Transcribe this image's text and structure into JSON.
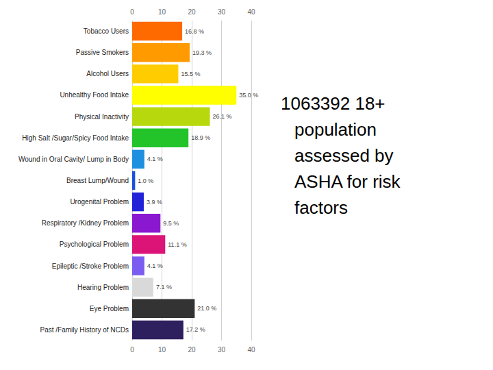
{
  "chart_data": {
    "type": "bar",
    "orientation": "horizontal",
    "annotation": "1063392 18+ population assessed by ASHA for risk factors",
    "categories": [
      "Tobacco Users",
      "Passive Smokers",
      "Alcohol Users",
      "Unhealthy Food Intake",
      "Physical Inactivity",
      "High Salt /Sugar/Spicy Food Intake",
      "Wound in Oral Cavity/ Lump in Body",
      "Breast Lump/Wound",
      "Urogenital Problem",
      "Respiratory /Kidney Problem",
      "Psychological Problem",
      "Epileptic /Stroke Problem",
      "Hearing Problem",
      "Eye Problem",
      "Past /Family History of NCDs"
    ],
    "values": [
      16.8,
      19.3,
      15.5,
      35.0,
      26.1,
      18.9,
      4.1,
      1.0,
      3.9,
      9.5,
      11.1,
      4.1,
      7.1,
      21.0,
      17.2
    ],
    "value_labels": [
      "16.8 %",
      "19.3 %",
      "15.5 %",
      "35.0 %",
      "26.1 %",
      "18.9 %",
      "4.1 %",
      "1.0 %",
      "3.9 %",
      "9.5 %",
      "11.1 %",
      "4.1 %",
      "7.1 %",
      "21.0 %",
      "17.2 %"
    ],
    "colors": [
      "#ff6a00",
      "#ff9a00",
      "#ffcc00",
      "#ffff00",
      "#b7d80c",
      "#22c42a",
      "#1e90e0",
      "#1e4fd8",
      "#2222d8",
      "#8a18d0",
      "#dc1478",
      "#7b5cf0",
      "#d9d9d9",
      "#333333",
      "#2e1f5e"
    ],
    "xlim": [
      0,
      40
    ],
    "xticks": [
      0,
      10,
      20,
      30,
      40
    ],
    "data_labels": true,
    "grid": true
  }
}
